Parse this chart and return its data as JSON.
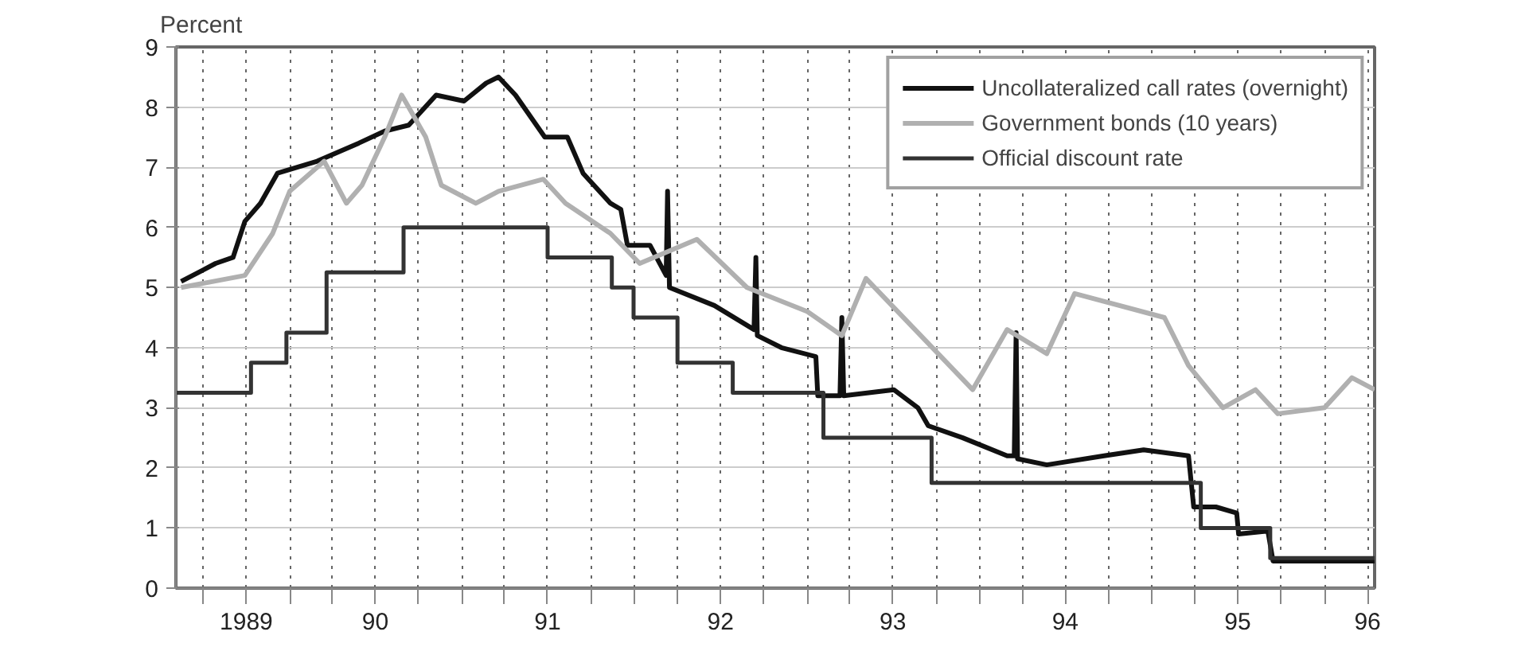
{
  "chart_data": {
    "type": "line",
    "ylabel": "Percent",
    "xlim": [
      "1989-05-05",
      "1996-04-16"
    ],
    "ylim": [
      0,
      9
    ],
    "yticks": [
      0,
      1,
      2,
      3,
      4,
      5,
      6,
      7,
      8,
      9
    ],
    "xticks": [
      {
        "value": "1989-07-01",
        "label": null
      },
      {
        "value": "1989-10-01",
        "label": "1989"
      },
      {
        "value": "1990-01-01",
        "label": null
      },
      {
        "value": "1990-04-01",
        "label": null
      },
      {
        "value": "1990-07-01",
        "label": "90"
      },
      {
        "value": "1990-10-01",
        "label": null
      },
      {
        "value": "1991-01-01",
        "label": null
      },
      {
        "value": "1991-04-01",
        "label": null
      },
      {
        "value": "1991-07-01",
        "label": "91"
      },
      {
        "value": "1991-10-01",
        "label": null
      },
      {
        "value": "1992-01-01",
        "label": null
      },
      {
        "value": "1992-04-01",
        "label": null
      },
      {
        "value": "1992-07-01",
        "label": "92"
      },
      {
        "value": "1992-10-01",
        "label": null
      },
      {
        "value": "1993-01-01",
        "label": null
      },
      {
        "value": "1993-04-01",
        "label": null
      },
      {
        "value": "1993-07-01",
        "label": "93"
      },
      {
        "value": "1993-10-01",
        "label": null
      },
      {
        "value": "1994-01-01",
        "label": null
      },
      {
        "value": "1994-04-01",
        "label": null
      },
      {
        "value": "1994-07-01",
        "label": "94"
      },
      {
        "value": "1994-10-01",
        "label": null
      },
      {
        "value": "1995-01-01",
        "label": null
      },
      {
        "value": "1995-04-01",
        "label": null
      },
      {
        "value": "1995-07-01",
        "label": "95"
      },
      {
        "value": "1995-10-01",
        "label": null
      },
      {
        "value": "1996-01-01",
        "label": null
      },
      {
        "value": "1996-04-01",
        "label": "96"
      }
    ],
    "grid": true,
    "legend": "top right",
    "marker": "none",
    "line_style": "solid",
    "series": [
      {
        "name": "Uncollateralized call rates (overnight)",
        "color": "#111111",
        "x": [
          "1989-05-16",
          "1989-07-28",
          "1989-09-03",
          "1989-09-28",
          "1989-10-31",
          "1989-12-06",
          "1990-02-28",
          "1990-05-27",
          "1990-07-21",
          "1990-09-10",
          "1990-11-07",
          "1991-01-05",
          "1991-02-21",
          "1991-03-19",
          "1991-04-24",
          "1991-06-25",
          "1991-08-12",
          "1991-09-14",
          "1991-11-11",
          "1991-12-03",
          "1991-12-17",
          "1992-02-03",
          "1992-03-08",
          "1992-03-11",
          "1992-03-15",
          "1992-06-18",
          "1992-09-10",
          "1992-09-14",
          "1992-09-17",
          "1992-11-07",
          "1993-01-19",
          "1993-01-23",
          "1993-03-11",
          "1993-03-15",
          "1993-03-19",
          "1993-07-03",
          "1993-08-23",
          "1993-09-14",
          "1993-11-26",
          "1994-02-28",
          "1994-03-15",
          "1994-03-19",
          "1994-03-22",
          "1994-05-23",
          "1994-09-21",
          "1994-12-14",
          "1995-03-19",
          "1995-03-30",
          "1995-05-16",
          "1995-06-29",
          "1995-07-03",
          "1995-09-03",
          "1995-09-14",
          "1996-04-16"
        ],
        "values": [
          5.1,
          5.4,
          5.5,
          6.1,
          6.4,
          6.9,
          7.1,
          7.4,
          7.6,
          7.7,
          8.2,
          8.1,
          8.4,
          8.5,
          8.2,
          7.5,
          7.5,
          6.9,
          6.4,
          6.3,
          5.7,
          5.7,
          5.2,
          6.6,
          5.0,
          4.7,
          4.3,
          5.5,
          4.2,
          4.0,
          3.85,
          3.2,
          3.2,
          4.5,
          3.2,
          3.3,
          3.0,
          2.7,
          2.5,
          2.2,
          2.2,
          4.25,
          2.15,
          2.05,
          2.2,
          2.3,
          2.2,
          1.35,
          1.35,
          1.25,
          0.9,
          0.95,
          0.45,
          0.45
        ]
      },
      {
        "name": "Government bonds (10 years)",
        "color": "#b0b0b0",
        "x": [
          "1989-05-16",
          "1989-09-28",
          "1989-11-26",
          "1990-01-01",
          "1990-03-15",
          "1990-05-01",
          "1990-06-03",
          "1990-07-21",
          "1990-08-26",
          "1990-10-16",
          "1990-11-18",
          "1991-01-30",
          "1991-03-19",
          "1991-06-22",
          "1991-08-08",
          "1991-11-11",
          "1992-01-12",
          "1992-05-12",
          "1992-08-26",
          "1993-01-01",
          "1993-03-15",
          "1993-05-05",
          "1993-12-17",
          "1994-02-28",
          "1994-05-23",
          "1994-07-21",
          "1995-01-27",
          "1995-03-19",
          "1995-05-31",
          "1995-08-08",
          "1995-09-24",
          "1996-01-01",
          "1996-02-28",
          "1996-04-16"
        ],
        "values": [
          5.0,
          5.2,
          5.9,
          6.6,
          7.1,
          6.4,
          6.7,
          7.5,
          8.2,
          7.5,
          6.7,
          6.4,
          6.6,
          6.8,
          6.4,
          5.9,
          5.4,
          5.8,
          5.0,
          4.6,
          4.2,
          5.15,
          3.3,
          4.3,
          3.9,
          4.9,
          4.5,
          3.7,
          3.0,
          3.3,
          2.9,
          3.0,
          3.5,
          3.3
        ]
      },
      {
        "name": "Official discount rate",
        "color": "#333333",
        "type": "step",
        "x": [
          "1989-05-05",
          "1989-10-11",
          "1989-12-25",
          "1990-03-20",
          "1990-08-30",
          "1991-07-01",
          "1991-11-14",
          "1991-12-30",
          "1992-04-01",
          "1992-07-27",
          "1993-02-04",
          "1993-09-21",
          "1995-04-14",
          "1995-09-08",
          "1996-04-16"
        ],
        "values": [
          3.25,
          3.75,
          4.25,
          5.25,
          6.0,
          5.5,
          5.0,
          4.5,
          3.75,
          3.25,
          2.5,
          1.75,
          1.0,
          0.5,
          0.5
        ]
      }
    ]
  }
}
